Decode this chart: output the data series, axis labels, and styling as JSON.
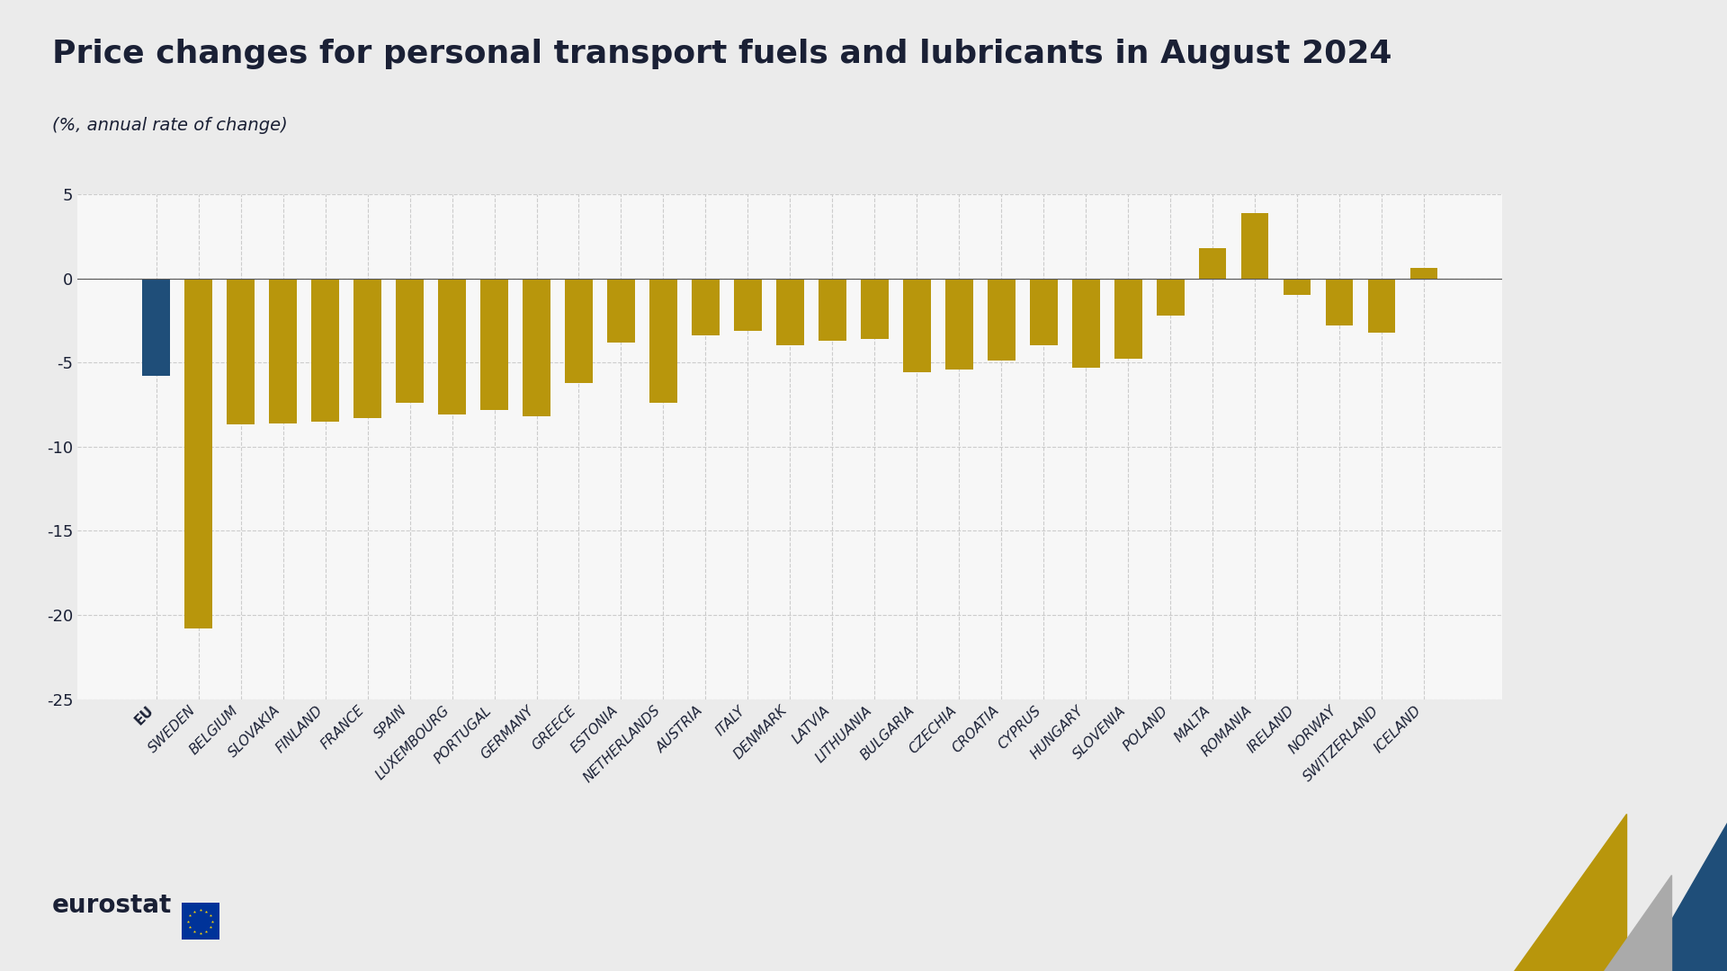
{
  "title": "Price changes for personal transport fuels and lubricants in August 2024",
  "subtitle": "(%, annual rate of change)",
  "categories": [
    "EU",
    "SWEDEN",
    "BELGIUM",
    "SLOVAKIA",
    "FINLAND",
    "FRANCE",
    "SPAIN",
    "LUXEMBOURG",
    "PORTUGAL",
    "GERMANY",
    "GREECE",
    "ESTONIA",
    "NETHERLANDS",
    "AUSTRIA",
    "ITALY",
    "DENMARK",
    "LATVIA",
    "LITHUANIA",
    "BULGARIA",
    "CZECHIA",
    "CROATIA",
    "CYPRUS",
    "HUNGARY",
    "SLOVENIA",
    "POLAND",
    "MALTA",
    "ROMANIA",
    "IRELAND",
    "NORWAY",
    "SWITZERLAND",
    "ICELAND"
  ],
  "values": [
    -5.8,
    -20.8,
    -8.7,
    -8.6,
    -8.5,
    -8.3,
    -7.4,
    -8.1,
    -7.8,
    -8.2,
    -6.2,
    -3.8,
    -7.4,
    -3.4,
    -3.1,
    -4.0,
    -3.7,
    -3.6,
    -5.6,
    -5.4,
    -4.9,
    -4.0,
    -5.3,
    -4.8,
    -2.2,
    1.8,
    3.9,
    -1.0,
    -2.8,
    -3.2,
    0.6
  ],
  "bar_colors": [
    "#1f4e79",
    "#b8960c",
    "#b8960c",
    "#b8960c",
    "#b8960c",
    "#b8960c",
    "#b8960c",
    "#b8960c",
    "#b8960c",
    "#b8960c",
    "#b8960c",
    "#b8960c",
    "#b8960c",
    "#b8960c",
    "#b8960c",
    "#b8960c",
    "#b8960c",
    "#b8960c",
    "#b8960c",
    "#b8960c",
    "#b8960c",
    "#b8960c",
    "#b8960c",
    "#b8960c",
    "#b8960c",
    "#b8960c",
    "#b8960c",
    "#b8960c",
    "#b8960c",
    "#b8960c",
    "#b8960c"
  ],
  "ylim": [
    -25,
    5
  ],
  "yticks": [
    -25,
    -20,
    -15,
    -10,
    -5,
    0,
    5
  ],
  "background_color": "#ebebeb",
  "plot_bg_color": "#f7f7f7",
  "title_color": "#1a2035",
  "subtitle_color": "#1a2035",
  "tick_label_color": "#1a2035",
  "grid_color": "#cccccc",
  "title_fontsize": 26,
  "subtitle_fontsize": 14,
  "tick_fontsize": 13,
  "axis_label_fontsize": 11
}
